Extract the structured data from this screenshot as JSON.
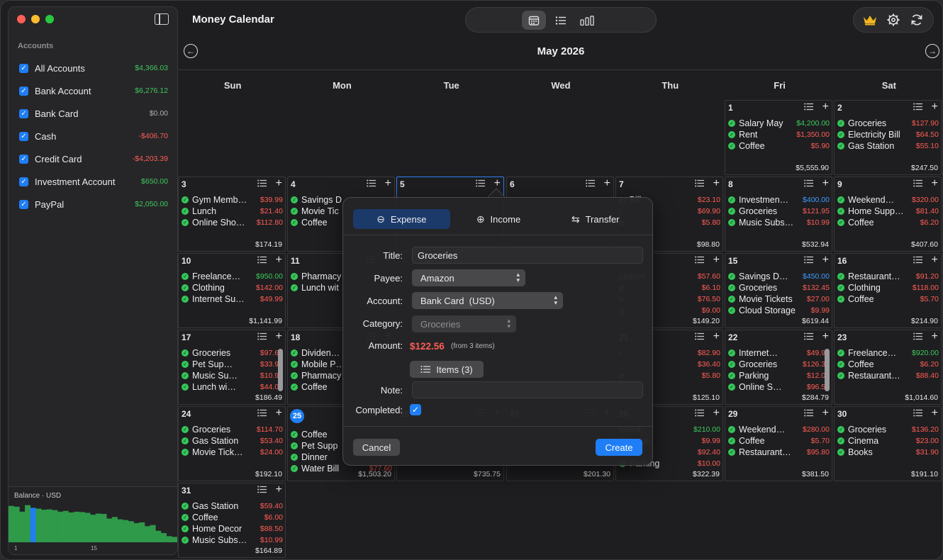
{
  "app_title": "Money Calendar",
  "sidebar": {
    "heading": "Accounts",
    "accounts": [
      {
        "name": "All Accounts",
        "amount": "$4,366.03",
        "tone": "pos"
      },
      {
        "name": "Bank Account",
        "amount": "$6,276.12",
        "tone": "pos"
      },
      {
        "name": "Bank Card",
        "amount": "$0.00",
        "tone": "zero"
      },
      {
        "name": "Cash",
        "amount": "-$406.70",
        "tone": "neg"
      },
      {
        "name": "Credit Card",
        "amount": "-$4,203.39",
        "tone": "neg"
      },
      {
        "name": "Investment Account",
        "amount": "$650.00",
        "tone": "pos"
      },
      {
        "name": "PayPal",
        "amount": "$2,050.00",
        "tone": "pos"
      }
    ],
    "balance": {
      "label": "Balance · USD",
      "tick_labels": [
        "1",
        "15"
      ],
      "bars": [
        0.95,
        0.93,
        0.8,
        0.97,
        0.9,
        0.88,
        0.85,
        0.86,
        0.84,
        0.8,
        0.82,
        0.78,
        0.8,
        0.79,
        0.77,
        0.72,
        0.75,
        0.74,
        0.62,
        0.66,
        0.6,
        0.58,
        0.55,
        0.5,
        0.52,
        0.42,
        0.45,
        0.3,
        0.24,
        0.16,
        0.14
      ],
      "highlight_index": 4
    }
  },
  "toolbar": {
    "view_icons": [
      "calendar-icon",
      "list-icon",
      "bar-chart-icon"
    ],
    "tool_icons": [
      "crown-icon",
      "gear-icon",
      "sync-icon"
    ]
  },
  "calendar": {
    "month_title": "May 2026",
    "weekdays": [
      "Sun",
      "Mon",
      "Tue",
      "Wed",
      "Thu",
      "Fri",
      "Sat"
    ],
    "today_day": "25",
    "selected_day": "5",
    "cells": [
      {
        "day": "1",
        "row": 0,
        "col": 5,
        "total": "$5,555.90",
        "tx": [
          {
            "t": "Salary May",
            "a": "$4,200.00",
            "c": "pos"
          },
          {
            "t": "Rent",
            "a": "$1,350.00",
            "c": "neg"
          },
          {
            "t": "Coffee",
            "a": "$5.90",
            "c": "neg"
          }
        ]
      },
      {
        "day": "2",
        "row": 0,
        "col": 6,
        "total": "$247.50",
        "tx": [
          {
            "t": "Groceries",
            "a": "$127.90",
            "c": "neg"
          },
          {
            "t": "Electricity Bill",
            "a": "$64.50",
            "c": "neg"
          },
          {
            "t": "Gas Station",
            "a": "$55.10",
            "c": "neg"
          }
        ]
      },
      {
        "day": "3",
        "row": 1,
        "col": 0,
        "total": "$174.19",
        "tx": [
          {
            "t": "Gym Memb…",
            "a": "$39.99",
            "c": "neg"
          },
          {
            "t": "Lunch",
            "a": "$21.40",
            "c": "neg"
          },
          {
            "t": "Online Sho…",
            "a": "$112.80",
            "c": "neg"
          }
        ]
      },
      {
        "day": "4",
        "row": 1,
        "col": 1,
        "total": "",
        "tx": [
          {
            "t": "Savings D",
            "a": "",
            "c": "pos"
          },
          {
            "t": "Movie Tic",
            "a": "",
            "c": "neg"
          },
          {
            "t": "Coffee",
            "a": "",
            "c": "neg"
          }
        ]
      },
      {
        "day": "5",
        "row": 1,
        "col": 2,
        "total": "",
        "tx": []
      },
      {
        "day": "6",
        "row": 1,
        "col": 3,
        "total": "",
        "tx": []
      },
      {
        "day": "7",
        "row": 1,
        "col": 4,
        "total": "$98.80",
        "tx": [
          {
            "t": "er Bill",
            "a": "$23.10",
            "c": "neg",
            "nodot": true
          },
          {
            "t": "r",
            "a": "$69.90",
            "c": "neg",
            "nodot": true
          },
          {
            "t": "e",
            "a": "$5.80",
            "c": "neg",
            "nodot": true
          }
        ]
      },
      {
        "day": "8",
        "row": 1,
        "col": 5,
        "total": "$532.94",
        "tx": [
          {
            "t": "Investmen…",
            "a": "$400.00",
            "c": "blue"
          },
          {
            "t": "Groceries",
            "a": "$121.95",
            "c": "neg"
          },
          {
            "t": "Music Subs…",
            "a": "$10.99",
            "c": "neg"
          }
        ]
      },
      {
        "day": "9",
        "row": 1,
        "col": 6,
        "total": "$407.60",
        "tx": [
          {
            "t": "Weekend…",
            "a": "$320.00",
            "c": "neg"
          },
          {
            "t": "Home Supp…",
            "a": "$81.40",
            "c": "neg"
          },
          {
            "t": "Coffee",
            "a": "$6.20",
            "c": "neg"
          }
        ]
      },
      {
        "day": "10",
        "row": 2,
        "col": 0,
        "total": "$1,141.99",
        "tx": [
          {
            "t": "Freelance…",
            "a": "$950.00",
            "c": "pos"
          },
          {
            "t": "Clothing",
            "a": "$142.00",
            "c": "neg"
          },
          {
            "t": "Internet Su…",
            "a": "$49.99",
            "c": "neg"
          }
        ]
      },
      {
        "day": "11",
        "row": 2,
        "col": 1,
        "total": "",
        "tx": [
          {
            "t": "Pharmacy",
            "a": "",
            "c": "neg"
          },
          {
            "t": "Lunch wit",
            "a": "",
            "c": "neg"
          }
        ]
      },
      {
        "day": "14",
        "row": 2,
        "col": 4,
        "total": "$149.20",
        "tx": [
          {
            "t": "station",
            "a": "$57.60",
            "c": "neg",
            "nodot": true
          },
          {
            "t": "e",
            "a": "$6.10",
            "c": "neg",
            "nodot": true
          },
          {
            "t": "e",
            "a": "$76.50",
            "c": "neg",
            "nodot": true
          },
          {
            "t": "g",
            "a": "$9.00",
            "c": "neg",
            "nodot": true
          }
        ]
      },
      {
        "day": "15",
        "row": 2,
        "col": 5,
        "total": "$619.44",
        "tx": [
          {
            "t": "Savings D…",
            "a": "$450.00",
            "c": "blue"
          },
          {
            "t": "Groceries",
            "a": "$132.45",
            "c": "neg"
          },
          {
            "t": "Movie Tickets",
            "a": "$27.00",
            "c": "neg"
          },
          {
            "t": "Cloud Storage",
            "a": "$9.99",
            "c": "neg"
          }
        ]
      },
      {
        "day": "16",
        "row": 2,
        "col": 6,
        "total": "$214.90",
        "tx": [
          {
            "t": "Restaurant…",
            "a": "$91.20",
            "c": "neg"
          },
          {
            "t": "Clothing",
            "a": "$118.00",
            "c": "neg"
          },
          {
            "t": "Coffee",
            "a": "$5.70",
            "c": "neg"
          }
        ]
      },
      {
        "day": "17",
        "row": 3,
        "col": 0,
        "total": "$186.49",
        "scroll": true,
        "tx": [
          {
            "t": "Groceries",
            "a": "$97.60",
            "c": "neg"
          },
          {
            "t": "Pet Sup…",
            "a": "$33.90",
            "c": "neg"
          },
          {
            "t": "Music Su…",
            "a": "$10.99",
            "c": "neg"
          },
          {
            "t": "Lunch wi…",
            "a": "$44.00",
            "c": "neg"
          }
        ]
      },
      {
        "day": "18",
        "row": 3,
        "col": 1,
        "total": "",
        "tx": [
          {
            "t": "Dividen…",
            "a": "",
            "c": "pos"
          },
          {
            "t": "Mobile P…",
            "a": "",
            "c": "neg"
          },
          {
            "t": "Pharmacy",
            "a": "",
            "c": "neg"
          },
          {
            "t": "Coffee",
            "a": "",
            "c": "neg"
          }
        ]
      },
      {
        "day": "21",
        "row": 3,
        "col": 4,
        "total": "$125.10",
        "tx": [
          {
            "t": "r",
            "a": "$82.90",
            "c": "neg",
            "nodot": true
          },
          {
            "t": "",
            "a": "$36.40",
            "c": "neg",
            "nodot": true
          },
          {
            "t": "e",
            "a": "$5.80",
            "c": "neg",
            "nodot": true
          }
        ]
      },
      {
        "day": "22",
        "row": 3,
        "col": 5,
        "total": "$284.79",
        "scroll": true,
        "tx": [
          {
            "t": "Internet…",
            "a": "$49.99",
            "c": "neg"
          },
          {
            "t": "Groceries",
            "a": "$126.30",
            "c": "neg"
          },
          {
            "t": "Parking",
            "a": "$12.00",
            "c": "neg"
          },
          {
            "t": "Online S…",
            "a": "$96.50",
            "c": "neg"
          }
        ]
      },
      {
        "day": "23",
        "row": 3,
        "col": 6,
        "total": "$1,014.60",
        "tx": [
          {
            "t": "Freelance…",
            "a": "$920.00",
            "c": "pos"
          },
          {
            "t": "Coffee",
            "a": "$6.20",
            "c": "neg"
          },
          {
            "t": "Restaurant…",
            "a": "$88.40",
            "c": "neg"
          }
        ]
      },
      {
        "day": "24",
        "row": 4,
        "col": 0,
        "total": "$192.10",
        "tx": [
          {
            "t": "Groceries",
            "a": "$114.70",
            "c": "neg"
          },
          {
            "t": "Gas Station",
            "a": "$53.40",
            "c": "neg"
          },
          {
            "t": "Movie Tick…",
            "a": "$24.00",
            "c": "neg"
          }
        ]
      },
      {
        "day": "25",
        "row": 4,
        "col": 1,
        "total": "$1,503.20",
        "tx": [
          {
            "t": "Coffee",
            "a": "",
            "c": "neg"
          },
          {
            "t": "Pet Supp",
            "a": "",
            "c": "neg"
          },
          {
            "t": "Dinner",
            "a": "",
            "c": "neg"
          },
          {
            "t": "Water Bill",
            "a": "$77.60",
            "c": "neg"
          }
        ]
      },
      {
        "day": "26",
        "row": 4,
        "col": 2,
        "total": "$735.75",
        "tx": []
      },
      {
        "day": "27",
        "row": 4,
        "col": 3,
        "total": "$201.30",
        "tx": []
      },
      {
        "day": "28",
        "row": 4,
        "col": 4,
        "total": "$322.39",
        "tx": [
          {
            "t": "tment…",
            "a": "$210.00",
            "c": "pos",
            "nodot": true
          },
          {
            "t": "Storage",
            "a": "$9.99",
            "c": "neg",
            "nodot": true
          },
          {
            "t": "ries",
            "a": "$92.40",
            "c": "neg",
            "nodot": true
          },
          {
            "t": "Parking",
            "a": "$10.00",
            "c": "neg"
          }
        ]
      },
      {
        "day": "29",
        "row": 4,
        "col": 5,
        "total": "$381.50",
        "tx": [
          {
            "t": "Weekend…",
            "a": "$280.00",
            "c": "neg"
          },
          {
            "t": "Coffee",
            "a": "$5.70",
            "c": "neg"
          },
          {
            "t": "Restaurant…",
            "a": "$95.80",
            "c": "neg"
          }
        ]
      },
      {
        "day": "30",
        "row": 4,
        "col": 6,
        "total": "$191.10",
        "tx": [
          {
            "t": "Groceries",
            "a": "$136.20",
            "c": "neg"
          },
          {
            "t": "Cinema",
            "a": "$23.00",
            "c": "neg"
          },
          {
            "t": "Books",
            "a": "$31.90",
            "c": "neg"
          }
        ]
      },
      {
        "day": "31",
        "row": 5,
        "col": 0,
        "total": "$164.89",
        "tx": [
          {
            "t": "Gas Station",
            "a": "$59.40",
            "c": "neg"
          },
          {
            "t": "Coffee",
            "a": "$6.00",
            "c": "neg"
          },
          {
            "t": "Home Decor",
            "a": "$88.50",
            "c": "neg"
          },
          {
            "t": "Music Subs…",
            "a": "$10.99",
            "c": "neg"
          }
        ]
      }
    ]
  },
  "popover": {
    "tabs": [
      {
        "label": "Expense",
        "icon": "minus-circle-icon",
        "active": true
      },
      {
        "label": "Income",
        "icon": "plus-circle-icon",
        "active": false
      },
      {
        "label": "Transfer",
        "icon": "transfer-arrows-icon",
        "active": false
      }
    ],
    "title_label": "Title:",
    "title_value": "Groceries",
    "payee_label": "Payee:",
    "payee_value": "Amazon",
    "account_label": "Account:",
    "account_value": "Bank Card  (USD)",
    "category_label": "Category:",
    "category_value": "Groceries",
    "amount_label": "Amount:",
    "amount_value": "$122.56",
    "amount_note": "(from 3 items)",
    "items_button": "Items (3)",
    "note_label": "Note:",
    "note_value": "",
    "completed_label": "Completed:",
    "completed": true,
    "cancel_label": "Cancel",
    "create_label": "Create"
  }
}
